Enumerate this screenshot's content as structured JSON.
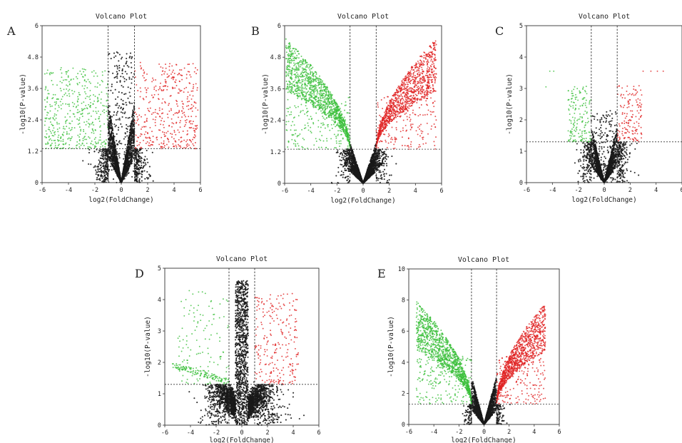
{
  "figure": {
    "panels": [
      {
        "letter": "A",
        "title": "Volcano Plot",
        "xlabel": "log2(FoldChange)",
        "ylabel": "-log10(P-value)",
        "xticks": [
          "-6",
          "-4",
          "-2",
          "0",
          "2",
          "4",
          "6"
        ],
        "yticks": [
          "0",
          "1.2",
          "2.4",
          "3.6",
          "4.8",
          "6"
        ]
      },
      {
        "letter": "B",
        "title": "Volcano Plot",
        "xlabel": "log2(FoldChange)",
        "ylabel": "-log10(P-value)",
        "xticks": [
          "-6",
          "-4",
          "-2",
          "0",
          "2",
          "4",
          "6"
        ],
        "yticks": [
          "0",
          "1.2",
          "2.4",
          "3.6",
          "4.8",
          "6"
        ]
      },
      {
        "letter": "C",
        "title": "Volcano Plot",
        "xlabel": "log2(FoldChange)",
        "ylabel": "-log10(P-value)",
        "xticks": [
          "-6",
          "-4",
          "-2",
          "0",
          "2",
          "4",
          "6"
        ],
        "yticks": [
          "0",
          "1",
          "2",
          "3",
          "4",
          "5"
        ]
      },
      {
        "letter": "D",
        "title": "Volcano Plot",
        "xlabel": "log2(FoldChange)",
        "ylabel": "-log10(P-value)",
        "xticks": [
          "-6",
          "-4",
          "-2",
          "0",
          "2",
          "4",
          "6"
        ],
        "yticks": [
          "0",
          "1",
          "2",
          "3",
          "4",
          "5"
        ]
      },
      {
        "letter": "E",
        "title": "Volcano Plot",
        "xlabel": "log2(FoldChange)",
        "ylabel": "-log10(P-value)",
        "xticks": [
          "-6",
          "-4",
          "-2",
          "0",
          "2",
          "4",
          "6"
        ],
        "yticks": [
          "0",
          "2",
          "4",
          "6",
          "8",
          "10"
        ]
      }
    ]
  },
  "colors": {
    "not_significant": "#1a1a1a",
    "down_regulated": "#3bbf3b",
    "up_regulated": "#e02020",
    "threshold_line": "#333333",
    "threshold_line_alt": "#8a7a30"
  },
  "chart_data": [
    {
      "panel": "A",
      "type": "scatter",
      "title": "Volcano Plot",
      "xlabel": "log2(FoldChange)",
      "ylabel": "-log10(P-value)",
      "xlim": [
        -6,
        6
      ],
      "ylim": [
        0,
        6
      ],
      "x_thresholds": [
        -1,
        1
      ],
      "y_threshold": 1.3,
      "groups": {
        "not_significant": {
          "approx_points": 2600,
          "x_range": [
            -2.2,
            2.2
          ],
          "y_range": [
            0,
            5.2
          ]
        },
        "down_regulated": {
          "approx_points": 450,
          "x_range": [
            -6,
            -1
          ],
          "y_range": [
            1.3,
            4.5
          ]
        },
        "up_regulated": {
          "approx_points": 420,
          "x_range": [
            1,
            6
          ],
          "y_range": [
            1.3,
            4.6
          ]
        }
      }
    },
    {
      "panel": "B",
      "type": "scatter",
      "title": "Volcano Plot",
      "xlabel": "log2(FoldChange)",
      "ylabel": "-log10(P-value)",
      "xlim": [
        -6,
        6
      ],
      "ylim": [
        0,
        6
      ],
      "x_thresholds": [
        -1,
        1
      ],
      "y_threshold": 1.3,
      "groups": {
        "not_significant": {
          "approx_points": 2400,
          "x_range": [
            -1.8,
            1.8
          ],
          "y_range": [
            0,
            2.2
          ]
        },
        "down_regulated": {
          "approx_points": 1400,
          "x_range": [
            -6,
            -1
          ],
          "y_range": [
            1.3,
            5.3
          ]
        },
        "up_regulated": {
          "approx_points": 1300,
          "x_range": [
            1,
            5.8
          ],
          "y_range": [
            1.3,
            5.3
          ]
        }
      }
    },
    {
      "panel": "C",
      "type": "scatter",
      "title": "Volcano Plot",
      "xlabel": "log2(FoldChange)",
      "ylabel": "-log10(P-value)",
      "xlim": [
        -6,
        6
      ],
      "ylim": [
        0,
        5
      ],
      "x_thresholds": [
        -1,
        1
      ],
      "y_threshold": 1.3,
      "groups": {
        "not_significant": {
          "approx_points": 2200,
          "x_range": [
            -2,
            2
          ],
          "y_range": [
            0,
            2.5
          ]
        },
        "down_regulated": {
          "approx_points": 160,
          "x_range": [
            -4.5,
            -1
          ],
          "y_range": [
            1.3,
            3.6
          ]
        },
        "up_regulated": {
          "approx_points": 150,
          "x_range": [
            1,
            4.6
          ],
          "y_range": [
            1.3,
            3.6
          ]
        }
      }
    },
    {
      "panel": "D",
      "type": "scatter",
      "title": "Volcano Plot",
      "xlabel": "log2(FoldChange)",
      "ylabel": "-log10(P-value)",
      "xlim": [
        -6,
        6
      ],
      "ylim": [
        0,
        5
      ],
      "x_thresholds": [
        -1,
        1
      ],
      "y_threshold": 1.3,
      "groups": {
        "not_significant": {
          "approx_points": 3200,
          "x_range": [
            -5,
            5
          ],
          "y_range": [
            0,
            4.8
          ]
        },
        "down_regulated": {
          "approx_points": 260,
          "x_range": [
            -5.5,
            -1
          ],
          "y_range": [
            1.3,
            4.3
          ]
        },
        "up_regulated": {
          "approx_points": 240,
          "x_range": [
            1,
            4.5
          ],
          "y_range": [
            1.3,
            4.2
          ]
        }
      }
    },
    {
      "panel": "E",
      "type": "scatter",
      "title": "Volcano Plot",
      "xlabel": "log2(FoldChange)",
      "ylabel": "-log10(P-value)",
      "xlim": [
        -6,
        6
      ],
      "ylim": [
        0,
        10
      ],
      "x_thresholds": [
        -1,
        1
      ],
      "y_threshold": 1.3,
      "groups": {
        "not_significant": {
          "approx_points": 2400,
          "x_range": [
            -1.6,
            1.6
          ],
          "y_range": [
            0,
            4
          ]
        },
        "down_regulated": {
          "approx_points": 1400,
          "x_range": [
            -5.5,
            -1
          ],
          "y_range": [
            1.3,
            7.6
          ]
        },
        "up_regulated": {
          "approx_points": 1300,
          "x_range": [
            1,
            5
          ],
          "y_range": [
            1.3,
            7.5
          ]
        }
      }
    }
  ]
}
